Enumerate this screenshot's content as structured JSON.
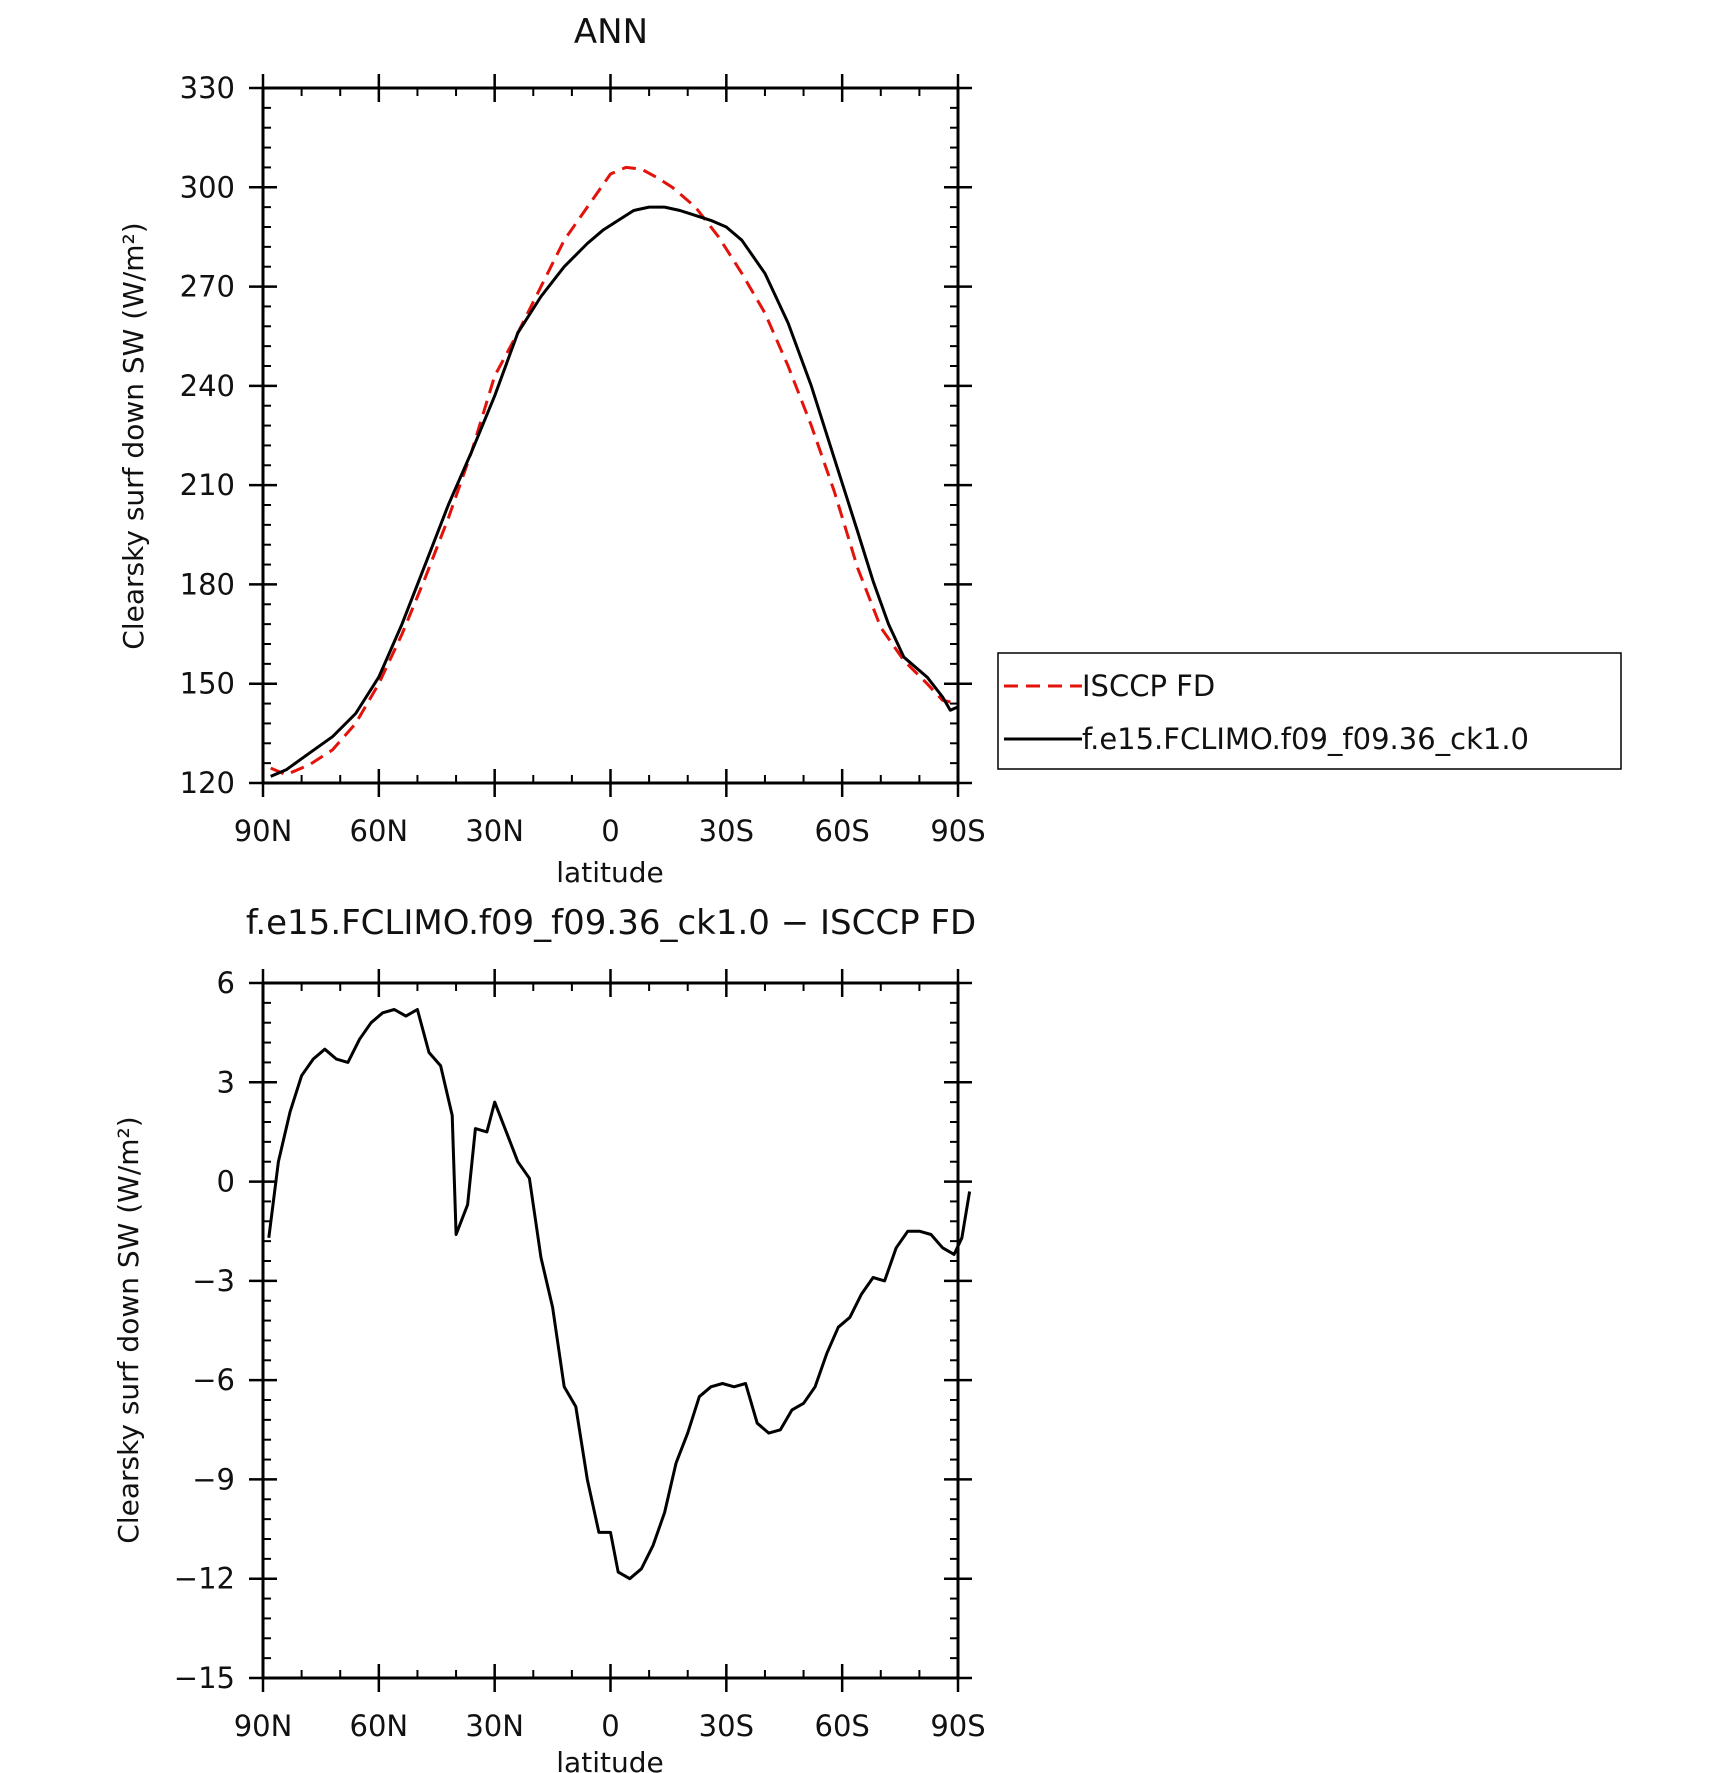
{
  "chart_data": [
    {
      "type": "line",
      "title": "ANN",
      "xlabel": "latitude",
      "ylabel": "Clearsky surf down SW (W/m²)",
      "ylim": [
        120,
        330
      ],
      "yticks": [
        120,
        150,
        180,
        210,
        240,
        270,
        300,
        330
      ],
      "xlim": [
        -90,
        90
      ],
      "xticks": [
        -90,
        -60,
        -30,
        0,
        30,
        60,
        90
      ],
      "xticklabels": [
        "90N",
        "60N",
        "30N",
        "0",
        "30S",
        "60S",
        "90S"
      ],
      "legend": "right",
      "series": [
        {
          "name": "ISCCP FD",
          "color": "#e3120b",
          "dash": "dashed",
          "points": [
            [
              -88,
              124.5
            ],
            [
              -84,
              122.5
            ],
            [
              -78,
              125.5
            ],
            [
              -72,
              130
            ],
            [
              -66,
              138
            ],
            [
              -60,
              150
            ],
            [
              -54,
              165
            ],
            [
              -48,
              182
            ],
            [
              -42,
              200
            ],
            [
              -36,
              220
            ],
            [
              -30,
              243
            ],
            [
              -24,
              256
            ],
            [
              -18,
              270
            ],
            [
              -12,
              284
            ],
            [
              -6,
              294
            ],
            [
              -3,
              299
            ],
            [
              0,
              304
            ],
            [
              4,
              306
            ],
            [
              8,
              305.5
            ],
            [
              12,
              303
            ],
            [
              16,
              300
            ],
            [
              22,
              294
            ],
            [
              28,
              285
            ],
            [
              34,
              274
            ],
            [
              40,
              262
            ],
            [
              46,
              246
            ],
            [
              52,
              228
            ],
            [
              58,
              208
            ],
            [
              64,
              185
            ],
            [
              70,
              167
            ],
            [
              76,
              157
            ],
            [
              82,
              150
            ],
            [
              86,
              145
            ],
            [
              90,
              144
            ]
          ]
        },
        {
          "name": "f.e15.FCLIMO.f09_f09.36_ck1.0",
          "color": "#000000",
          "dash": "solid",
          "points": [
            [
              -88,
              122
            ],
            [
              -84,
              124
            ],
            [
              -78,
              129
            ],
            [
              -72,
              134
            ],
            [
              -66,
              141
            ],
            [
              -60,
              152
            ],
            [
              -54,
              168
            ],
            [
              -48,
              186
            ],
            [
              -42,
              204
            ],
            [
              -36,
              220
            ],
            [
              -30,
              237
            ],
            [
              -24,
              256
            ],
            [
              -18,
              267
            ],
            [
              -12,
              276
            ],
            [
              -6,
              283
            ],
            [
              -2,
              287
            ],
            [
              2,
              290
            ],
            [
              6,
              293
            ],
            [
              10,
              294
            ],
            [
              14,
              294
            ],
            [
              18,
              293
            ],
            [
              22,
              291.5
            ],
            [
              26,
              290
            ],
            [
              30,
              288
            ],
            [
              34,
              284
            ],
            [
              40,
              274
            ],
            [
              46,
              259
            ],
            [
              52,
              240
            ],
            [
              58,
              218
            ],
            [
              64,
              196
            ],
            [
              68,
              181
            ],
            [
              72,
              168
            ],
            [
              76,
              158
            ],
            [
              82,
              152
            ],
            [
              86,
              146
            ],
            [
              88,
              142
            ],
            [
              90,
              143
            ]
          ]
        }
      ]
    },
    {
      "type": "line",
      "title": "f.e15.FCLIMO.f09_f09.36_ck1.0 − ISCCP FD",
      "xlabel": "latitude",
      "ylabel": "Clearsky surf down SW (W/m²)",
      "ylim": [
        -15,
        6
      ],
      "yticks": [
        -15,
        -12,
        -9,
        -6,
        -3,
        0,
        3,
        6
      ],
      "yticklabels": [
        "−15",
        "−12",
        "−9",
        "−6",
        "−3",
        "0",
        "3",
        "6"
      ],
      "xlim": [
        -90,
        90
      ],
      "xticks": [
        -90,
        -60,
        -30,
        0,
        30,
        60,
        90
      ],
      "xticklabels": [
        "90N",
        "60N",
        "30N",
        "0",
        "30S",
        "60S",
        "90S"
      ],
      "series": [
        {
          "color": "#000000",
          "dash": "solid",
          "points": [
            [
              -88.5,
              -1.7
            ],
            [
              -86,
              0.6
            ],
            [
              -83,
              2.1
            ],
            [
              -80,
              3.2
            ],
            [
              -77,
              3.7
            ],
            [
              -74,
              4
            ],
            [
              -71,
              3.7
            ],
            [
              -68,
              3.6
            ],
            [
              -65,
              4.3
            ],
            [
              -62,
              4.8
            ],
            [
              -59,
              5.1
            ],
            [
              -56,
              5.2
            ],
            [
              -53,
              5
            ],
            [
              -50,
              5.2
            ],
            [
              -47,
              3.9
            ],
            [
              -44,
              3.5
            ],
            [
              -41,
              2
            ],
            [
              -40,
              -1.6
            ],
            [
              -37,
              -0.7
            ],
            [
              -35,
              1.6
            ],
            [
              -32,
              1.5
            ],
            [
              -30,
              2.4
            ],
            [
              -27,
              1.5
            ],
            [
              -24,
              0.6
            ],
            [
              -21,
              0.1
            ],
            [
              -18,
              -2.3
            ],
            [
              -15,
              -3.8
            ],
            [
              -12,
              -6.2
            ],
            [
              -9,
              -6.8
            ],
            [
              -6,
              -9
            ],
            [
              -3,
              -10.6
            ],
            [
              0,
              -10.6
            ],
            [
              2,
              -11.8
            ],
            [
              5,
              -12
            ],
            [
              8,
              -11.7
            ],
            [
              11,
              -11
            ],
            [
              14,
              -10
            ],
            [
              17,
              -8.5
            ],
            [
              20,
              -7.6
            ],
            [
              23,
              -6.5
            ],
            [
              26,
              -6.2
            ],
            [
              29,
              -6.1
            ],
            [
              32,
              -6.2
            ],
            [
              35,
              -6.1
            ],
            [
              38,
              -7.3
            ],
            [
              41,
              -7.6
            ],
            [
              44,
              -7.5
            ],
            [
              47,
              -6.9
            ],
            [
              50,
              -6.7
            ],
            [
              53,
              -6.2
            ],
            [
              56,
              -5.2
            ],
            [
              59,
              -4.4
            ],
            [
              62,
              -4.1
            ],
            [
              65,
              -3.4
            ],
            [
              68,
              -2.9
            ],
            [
              71,
              -3
            ],
            [
              74,
              -2
            ],
            [
              77,
              -1.5
            ],
            [
              80,
              -1.5
            ],
            [
              83,
              -1.6
            ],
            [
              86,
              -2
            ],
            [
              89,
              -2.2
            ],
            [
              91,
              -1.7
            ],
            [
              93,
              -0.3
            ]
          ]
        }
      ]
    }
  ]
}
